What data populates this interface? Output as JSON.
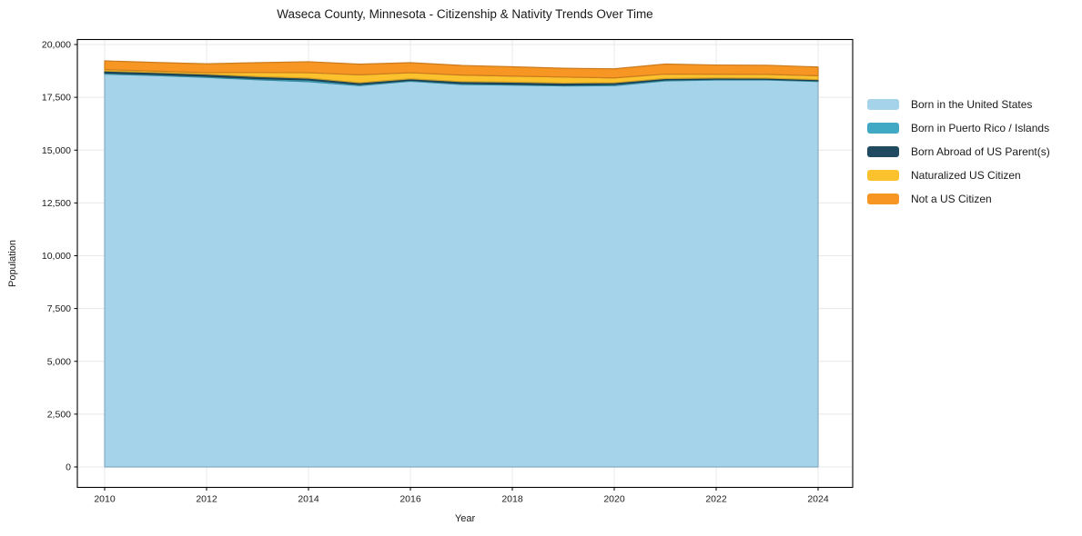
{
  "title": "Waseca County, Minnesota - Citizenship & Nativity Trends Over Time",
  "chart_data": {
    "type": "area",
    "stacked": true,
    "title": "Waseca County, Minnesota - Citizenship & Nativity Trends Over Time",
    "xlabel": "Year",
    "ylabel": "Population",
    "x": [
      2010,
      2011,
      2012,
      2013,
      2014,
      2015,
      2016,
      2017,
      2018,
      2019,
      2020,
      2021,
      2022,
      2023,
      2024
    ],
    "x_ticks": [
      2010,
      2012,
      2014,
      2016,
      2018,
      2020,
      2022,
      2024
    ],
    "x_tick_labels": [
      "2010",
      "2012",
      "2014",
      "2016",
      "2018",
      "2020",
      "2022",
      "2024"
    ],
    "y_ticks": [
      0,
      2500,
      5000,
      7500,
      10000,
      12500,
      15000,
      17500,
      20000
    ],
    "y_tick_labels": [
      "0",
      "2,500",
      "5,000",
      "7,500",
      "10,000",
      "12,500",
      "15,000",
      "17,500",
      "20,000"
    ],
    "ylim": [
      0,
      20000
    ],
    "grid": true,
    "legend_position": "right-outside",
    "series": [
      {
        "name": "Born in the United States",
        "color": "#a5d3ea",
        "values": [
          18600,
          18530,
          18445,
          18330,
          18240,
          18055,
          18260,
          18105,
          18080,
          18040,
          18055,
          18280,
          18320,
          18320,
          18250
        ]
      },
      {
        "name": "Born in Puerto Rico / Islands",
        "color": "#41a9c4",
        "values": [
          55,
          55,
          55,
          55,
          80,
          55,
          45,
          55,
          45,
          40,
          55,
          45,
          40,
          35,
          35
        ]
      },
      {
        "name": "Born Abroad of US Parent(s)",
        "color": "#1f4a5f",
        "values": [
          90,
          90,
          95,
          100,
          90,
          85,
          70,
          85,
          95,
          95,
          80,
          65,
          55,
          50,
          55
        ]
      },
      {
        "name": "Naturalized US Citizen",
        "color": "#fcc22e",
        "values": [
          70,
          65,
          75,
          190,
          255,
          370,
          290,
          310,
          285,
          285,
          230,
          210,
          175,
          180,
          180
        ]
      },
      {
        "name": "Not a US Citizen",
        "color": "#f79623",
        "values": [
          410,
          410,
          415,
          465,
          520,
          505,
          475,
          455,
          440,
          415,
          430,
          475,
          440,
          435,
          415
        ]
      }
    ],
    "colors": {
      "background": "#ffffff",
      "grid": "#e8e8e8",
      "spine": "#000000",
      "text": "#1a1a1a"
    }
  }
}
